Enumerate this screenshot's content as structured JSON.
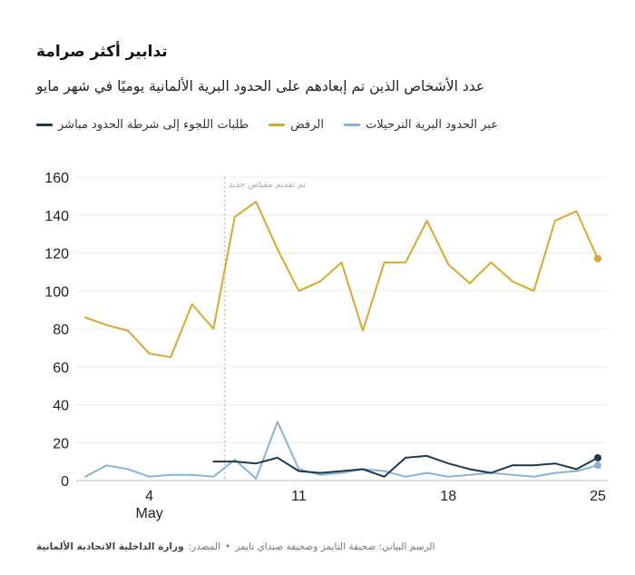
{
  "header": {
    "title": "تدابير أكثر صرامة",
    "subtitle": "عدد الأشخاص الذين تم إبعادهم على الحدود البرية الألمانية يوميًا في شهر مايو"
  },
  "legend": [
    {
      "label": "عبر الحدود البرية الترحيلات",
      "color": "#86b3d8"
    },
    {
      "label": "الرفض",
      "color": "#d9a92f"
    },
    {
      "label": "طلبات اللجوء إلى شرطة الحدود مباشر",
      "color": "#1f3a4d"
    }
  ],
  "footer": {
    "credit": "الرسم البياني: صحيفة التايمز وصحيفة صنداي تايمز",
    "separator": "•",
    "source_label": "المصدر:",
    "source_org": "وزارة الداخلية الاتحادية الألمانية"
  },
  "chart_data": {
    "type": "line",
    "x_label_month": "May",
    "x_ticks": [
      4,
      11,
      18,
      25
    ],
    "x_range": [
      1,
      25
    ],
    "y_ticks": [
      0,
      20,
      40,
      60,
      80,
      100,
      120,
      140,
      160
    ],
    "ylim": [
      0,
      160
    ],
    "grid": true,
    "annotation": {
      "x": 8,
      "text": "تم تقديم مقياس جديد"
    },
    "series": [
      {
        "name": "الرفض",
        "color": "#d9a92f",
        "x": [
          1,
          2,
          3,
          4,
          5,
          6,
          7,
          8,
          9,
          10,
          11,
          12,
          13,
          14,
          15,
          16,
          17,
          18,
          19,
          20,
          21,
          22,
          23,
          24,
          25
        ],
        "values": [
          86,
          82,
          79,
          67,
          65,
          93,
          80,
          139,
          147,
          122,
          100,
          105,
          115,
          79,
          115,
          115,
          137,
          114,
          104,
          115,
          105,
          100,
          137,
          142,
          117
        ],
        "end_marker": true
      },
      {
        "name": "عبر الحدود البرية الترحيلات",
        "color": "#86b3d8",
        "x": [
          1,
          2,
          3,
          4,
          5,
          6,
          7,
          8,
          9,
          10,
          11,
          12,
          13,
          14,
          15,
          16,
          17,
          18,
          19,
          20,
          21,
          22,
          23,
          24,
          25
        ],
        "values": [
          2,
          8,
          6,
          2,
          3,
          3,
          2,
          11,
          1,
          31,
          6,
          3,
          4,
          6,
          5,
          2,
          4,
          2,
          3,
          4,
          3,
          2,
          4,
          5,
          8
        ],
        "end_marker": true
      },
      {
        "name": "طلبات اللجوء إلى شرطة الحدود مباشر",
        "color": "#1f3a4d",
        "x": [
          7,
          8,
          9,
          10,
          11,
          12,
          13,
          14,
          15,
          16,
          17,
          18,
          19,
          20,
          21,
          22,
          23,
          24,
          25
        ],
        "values": [
          10,
          10,
          9,
          12,
          5,
          4,
          5,
          6,
          2,
          12,
          13,
          9,
          6,
          4,
          8,
          8,
          9,
          6,
          12
        ],
        "end_marker": true
      }
    ]
  }
}
